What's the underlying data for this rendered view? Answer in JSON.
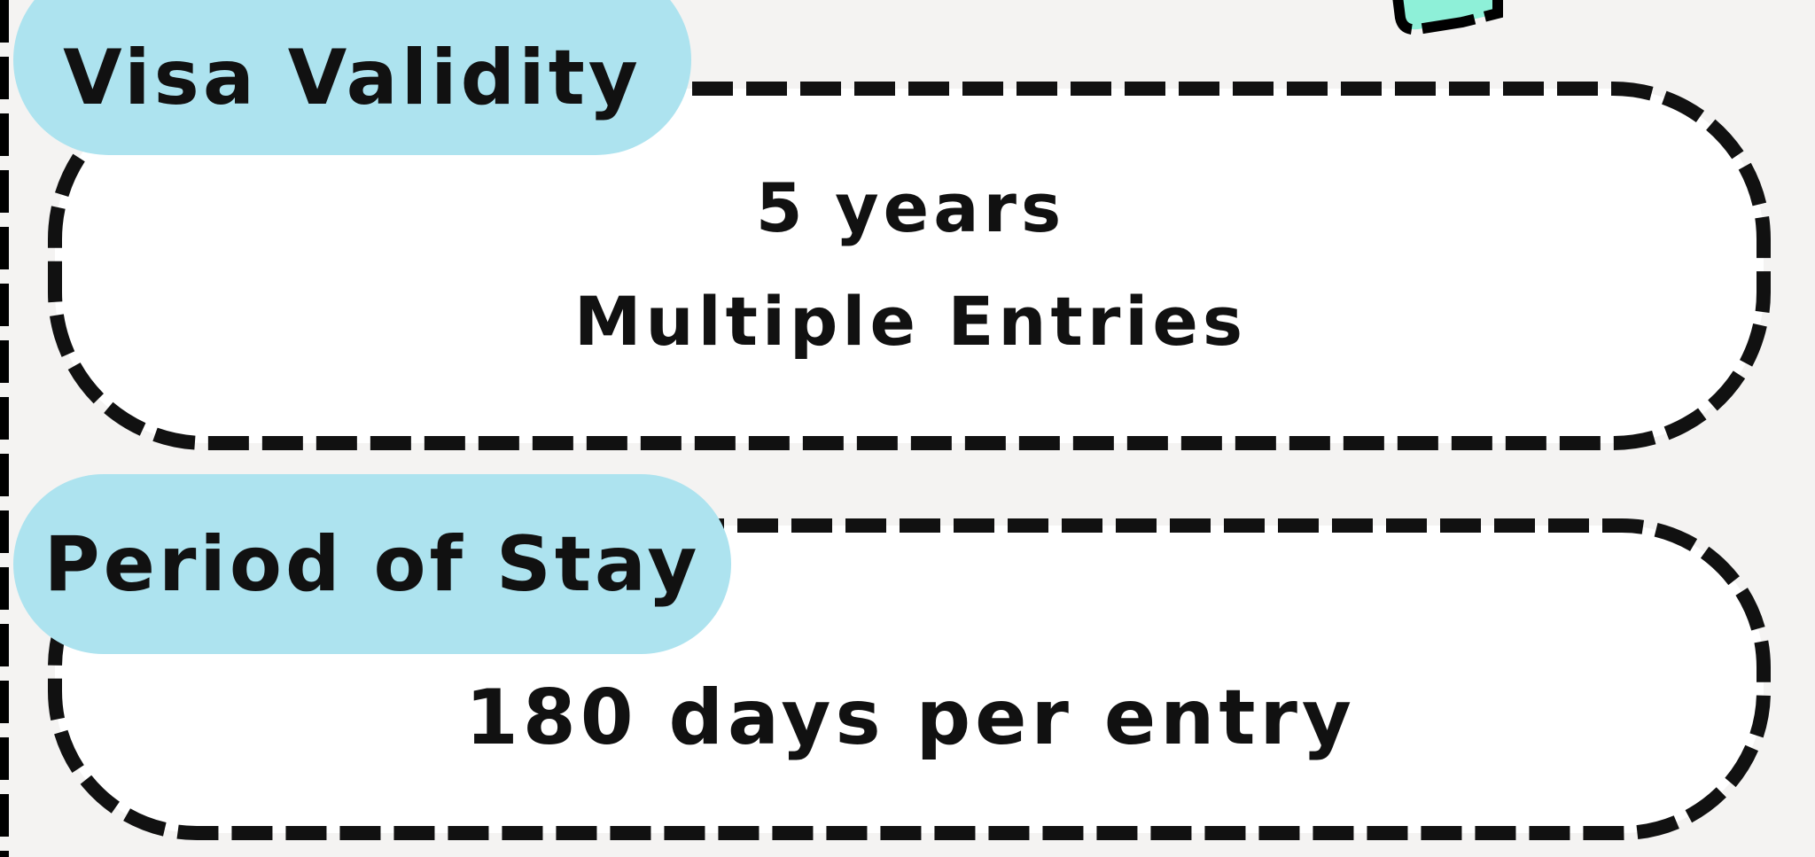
{
  "colors": {
    "background": "#f4f3f2",
    "label_pill": "#ade3ef",
    "border": "#111111",
    "icon_fill": "#8ef0d8"
  },
  "sections": [
    {
      "label": "Visa Validity",
      "lines": [
        "5 years",
        "Multiple Entries"
      ]
    },
    {
      "label": "Period of Stay",
      "lines": [
        "180 days per entry"
      ]
    }
  ],
  "decor": {
    "top_right_icon": "document-card-icon"
  }
}
